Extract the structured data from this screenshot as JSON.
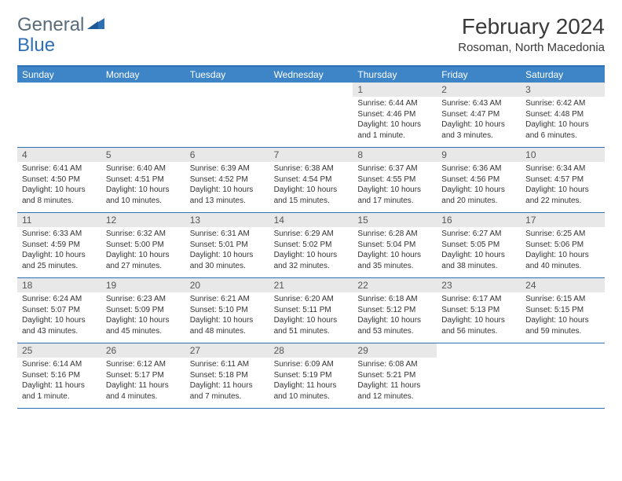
{
  "brand": {
    "word1": "General",
    "word2": "Blue"
  },
  "title": "February 2024",
  "location": "Rosoman, North Macedonia",
  "colors": {
    "header_bar": "#3d85c6",
    "border": "#2d70b5",
    "daynum_bg": "#e8e8e8",
    "text": "#333333",
    "logo_gray": "#5a6b7a",
    "logo_blue": "#2d70b5"
  },
  "typography": {
    "title_fontsize": 28,
    "location_fontsize": 15,
    "dow_fontsize": 12,
    "daynum_fontsize": 12,
    "body_fontsize": 10
  },
  "daysOfWeek": [
    "Sunday",
    "Monday",
    "Tuesday",
    "Wednesday",
    "Thursday",
    "Friday",
    "Saturday"
  ],
  "weeks": [
    [
      {
        "n": "",
        "sr": "",
        "ss": "",
        "dl": ""
      },
      {
        "n": "",
        "sr": "",
        "ss": "",
        "dl": ""
      },
      {
        "n": "",
        "sr": "",
        "ss": "",
        "dl": ""
      },
      {
        "n": "",
        "sr": "",
        "ss": "",
        "dl": ""
      },
      {
        "n": "1",
        "sr": "6:44 AM",
        "ss": "4:46 PM",
        "dl": "10 hours and 1 minute."
      },
      {
        "n": "2",
        "sr": "6:43 AM",
        "ss": "4:47 PM",
        "dl": "10 hours and 3 minutes."
      },
      {
        "n": "3",
        "sr": "6:42 AM",
        "ss": "4:48 PM",
        "dl": "10 hours and 6 minutes."
      }
    ],
    [
      {
        "n": "4",
        "sr": "6:41 AM",
        "ss": "4:50 PM",
        "dl": "10 hours and 8 minutes."
      },
      {
        "n": "5",
        "sr": "6:40 AM",
        "ss": "4:51 PM",
        "dl": "10 hours and 10 minutes."
      },
      {
        "n": "6",
        "sr": "6:39 AM",
        "ss": "4:52 PM",
        "dl": "10 hours and 13 minutes."
      },
      {
        "n": "7",
        "sr": "6:38 AM",
        "ss": "4:54 PM",
        "dl": "10 hours and 15 minutes."
      },
      {
        "n": "8",
        "sr": "6:37 AM",
        "ss": "4:55 PM",
        "dl": "10 hours and 17 minutes."
      },
      {
        "n": "9",
        "sr": "6:36 AM",
        "ss": "4:56 PM",
        "dl": "10 hours and 20 minutes."
      },
      {
        "n": "10",
        "sr": "6:34 AM",
        "ss": "4:57 PM",
        "dl": "10 hours and 22 minutes."
      }
    ],
    [
      {
        "n": "11",
        "sr": "6:33 AM",
        "ss": "4:59 PM",
        "dl": "10 hours and 25 minutes."
      },
      {
        "n": "12",
        "sr": "6:32 AM",
        "ss": "5:00 PM",
        "dl": "10 hours and 27 minutes."
      },
      {
        "n": "13",
        "sr": "6:31 AM",
        "ss": "5:01 PM",
        "dl": "10 hours and 30 minutes."
      },
      {
        "n": "14",
        "sr": "6:29 AM",
        "ss": "5:02 PM",
        "dl": "10 hours and 32 minutes."
      },
      {
        "n": "15",
        "sr": "6:28 AM",
        "ss": "5:04 PM",
        "dl": "10 hours and 35 minutes."
      },
      {
        "n": "16",
        "sr": "6:27 AM",
        "ss": "5:05 PM",
        "dl": "10 hours and 38 minutes."
      },
      {
        "n": "17",
        "sr": "6:25 AM",
        "ss": "5:06 PM",
        "dl": "10 hours and 40 minutes."
      }
    ],
    [
      {
        "n": "18",
        "sr": "6:24 AM",
        "ss": "5:07 PM",
        "dl": "10 hours and 43 minutes."
      },
      {
        "n": "19",
        "sr": "6:23 AM",
        "ss": "5:09 PM",
        "dl": "10 hours and 45 minutes."
      },
      {
        "n": "20",
        "sr": "6:21 AM",
        "ss": "5:10 PM",
        "dl": "10 hours and 48 minutes."
      },
      {
        "n": "21",
        "sr": "6:20 AM",
        "ss": "5:11 PM",
        "dl": "10 hours and 51 minutes."
      },
      {
        "n": "22",
        "sr": "6:18 AM",
        "ss": "5:12 PM",
        "dl": "10 hours and 53 minutes."
      },
      {
        "n": "23",
        "sr": "6:17 AM",
        "ss": "5:13 PM",
        "dl": "10 hours and 56 minutes."
      },
      {
        "n": "24",
        "sr": "6:15 AM",
        "ss": "5:15 PM",
        "dl": "10 hours and 59 minutes."
      }
    ],
    [
      {
        "n": "25",
        "sr": "6:14 AM",
        "ss": "5:16 PM",
        "dl": "11 hours and 1 minute."
      },
      {
        "n": "26",
        "sr": "6:12 AM",
        "ss": "5:17 PM",
        "dl": "11 hours and 4 minutes."
      },
      {
        "n": "27",
        "sr": "6:11 AM",
        "ss": "5:18 PM",
        "dl": "11 hours and 7 minutes."
      },
      {
        "n": "28",
        "sr": "6:09 AM",
        "ss": "5:19 PM",
        "dl": "11 hours and 10 minutes."
      },
      {
        "n": "29",
        "sr": "6:08 AM",
        "ss": "5:21 PM",
        "dl": "11 hours and 12 minutes."
      },
      {
        "n": "",
        "sr": "",
        "ss": "",
        "dl": ""
      },
      {
        "n": "",
        "sr": "",
        "ss": "",
        "dl": ""
      }
    ]
  ],
  "labels": {
    "sunrise": "Sunrise:",
    "sunset": "Sunset:",
    "daylight": "Daylight:"
  }
}
